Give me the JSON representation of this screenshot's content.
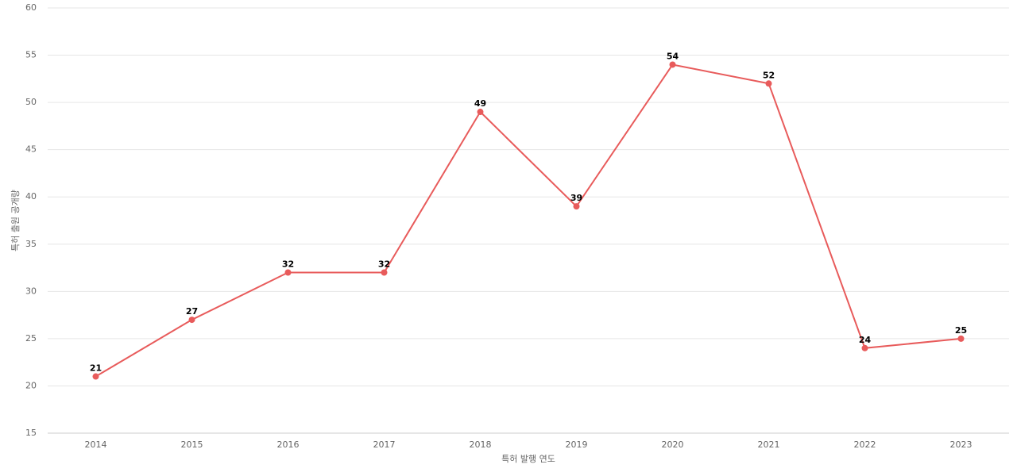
{
  "chart_data": {
    "type": "line",
    "x_label": "특허 발행 연도",
    "y_label": "특허 출원 공개량",
    "categories": [
      "2014",
      "2015",
      "2016",
      "2017",
      "2018",
      "2019",
      "2020",
      "2021",
      "2022",
      "2023"
    ],
    "series": [
      {
        "name": "특허 출원 공개량",
        "color": "#e85b5b",
        "values": [
          21,
          27,
          32,
          32,
          49,
          39,
          54,
          52,
          24,
          25
        ]
      }
    ],
    "ylim": [
      15,
      60
    ],
    "yticks": [
      15,
      20,
      25,
      30,
      35,
      40,
      45,
      50,
      55,
      60
    ],
    "grid": true
  }
}
